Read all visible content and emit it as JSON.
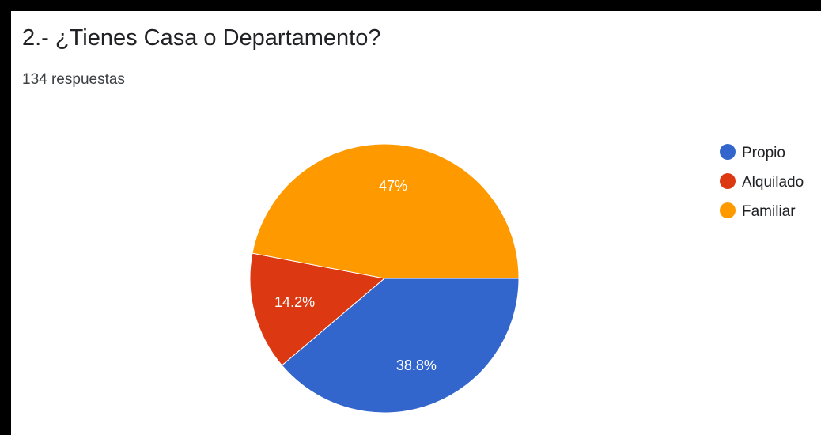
{
  "header": {
    "title": "2.- ¿Tienes Casa o Departamento?",
    "responses": "134 respuestas"
  },
  "chart_data": {
    "type": "pie",
    "slices": [
      {
        "label": "Propio",
        "value": 38.8,
        "value_label": "38.8%",
        "color": "#3366cc"
      },
      {
        "label": "Alquilado",
        "value": 14.2,
        "value_label": "14.2%",
        "color": "#dc3912"
      },
      {
        "label": "Familiar",
        "value": 47,
        "value_label": "47%",
        "color": "#ff9900"
      }
    ],
    "legend": {
      "position": "right"
    },
    "start_angle": "3 o'clock",
    "direction": "clockwise"
  }
}
